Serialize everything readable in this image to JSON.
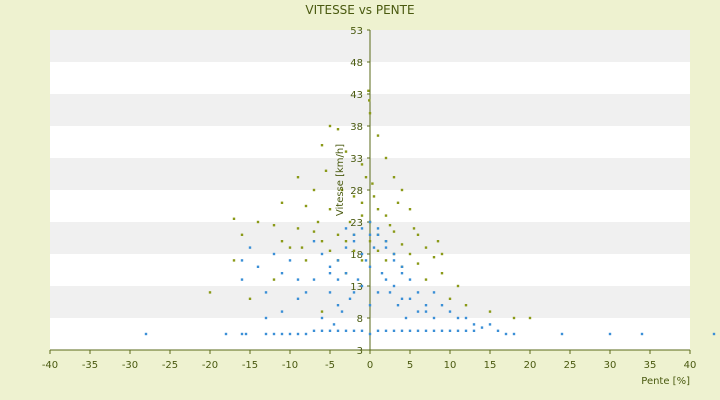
{
  "chart_data": {
    "type": "scatter",
    "title": "VITESSE vs PENTE",
    "xlabel": "Pente [%]",
    "ylabel": "Vitesse [km/h]",
    "xlim": [
      -40,
      40
    ],
    "ylim": [
      3,
      53
    ],
    "x_ticks": [
      -40,
      -35,
      -30,
      -25,
      -20,
      -15,
      -10,
      -5,
      0,
      5,
      10,
      15,
      20,
      25,
      30,
      35,
      40
    ],
    "y_ticks": [
      3,
      8,
      13,
      18,
      23,
      28,
      33,
      38,
      43,
      48,
      53
    ],
    "grid": "horizontal alternating bands",
    "legend": "none",
    "colors": {
      "background": "#eef2d0",
      "plot_band_light": "#ffffff",
      "plot_band_dark": "#f0f0f0",
      "axis": "#5a6a18",
      "series_blue": "#3a8fd6",
      "series_olive": "#8a9a18"
    },
    "series": [
      {
        "color": "#8a9a18",
        "points": [
          [
            -0.2,
            43.5
          ],
          [
            -0.1,
            42
          ],
          [
            0,
            40
          ],
          [
            -5,
            38
          ],
          [
            -4,
            37.5
          ],
          [
            1,
            36.5
          ],
          [
            -6,
            35
          ],
          [
            -3,
            34
          ],
          [
            2,
            33
          ],
          [
            -1,
            32
          ],
          [
            -5.5,
            31
          ],
          [
            3,
            30
          ],
          [
            -9,
            30
          ],
          [
            -7,
            28
          ],
          [
            4,
            28
          ],
          [
            0.5,
            27
          ],
          [
            -2,
            27
          ],
          [
            -11,
            26
          ],
          [
            -8,
            25.5
          ],
          [
            -5,
            25
          ],
          [
            5,
            25
          ],
          [
            -1,
            24
          ],
          [
            2,
            24
          ],
          [
            -17,
            23.5
          ],
          [
            -14,
            23
          ],
          [
            -12,
            22.5
          ],
          [
            -9,
            22
          ],
          [
            -7,
            21.5
          ],
          [
            -4,
            21
          ],
          [
            -2,
            21
          ],
          [
            1,
            21
          ],
          [
            3,
            21.5
          ],
          [
            6,
            21
          ],
          [
            -16,
            21
          ],
          [
            -6,
            20
          ],
          [
            -3,
            20
          ],
          [
            0,
            20
          ],
          [
            2,
            20
          ],
          [
            4,
            19.5
          ],
          [
            7,
            19
          ],
          [
            -10,
            19
          ],
          [
            -5,
            18.5
          ],
          [
            -2,
            18.5
          ],
          [
            1,
            18.5
          ],
          [
            3,
            18
          ],
          [
            5,
            18
          ],
          [
            8,
            17.5
          ],
          [
            -17,
            17
          ],
          [
            -8,
            17
          ],
          [
            -4,
            17
          ],
          [
            -1,
            17
          ],
          [
            2,
            17
          ],
          [
            6,
            16.5
          ],
          [
            9,
            15
          ],
          [
            11,
            13
          ],
          [
            -20,
            12
          ],
          [
            -15,
            11
          ],
          [
            -12,
            14
          ],
          [
            12,
            10
          ],
          [
            15,
            9
          ],
          [
            18,
            8
          ],
          [
            20,
            8
          ],
          [
            -6,
            9
          ],
          [
            7,
            14
          ],
          [
            10,
            11
          ],
          [
            -3,
            15
          ],
          [
            4,
            16
          ],
          [
            0,
            23
          ],
          [
            1,
            25
          ],
          [
            -1,
            26
          ],
          [
            0.3,
            29
          ],
          [
            -0.5,
            30
          ],
          [
            2.5,
            22.5
          ],
          [
            -2.5,
            23
          ],
          [
            5.5,
            22
          ],
          [
            -6.5,
            23
          ],
          [
            3.5,
            26
          ],
          [
            -3.5,
            28
          ],
          [
            -8.5,
            19
          ],
          [
            -11,
            20
          ],
          [
            8.5,
            20
          ],
          [
            9,
            18
          ]
        ]
      },
      {
        "color": "#3a8fd6",
        "points": [
          [
            -28,
            5.5
          ],
          [
            -18,
            5.5
          ],
          [
            -16,
            5.5
          ],
          [
            -15.5,
            5.5
          ],
          [
            -13,
            5.5
          ],
          [
            -12,
            5.5
          ],
          [
            -11,
            5.5
          ],
          [
            -10,
            5.5
          ],
          [
            -9,
            5.5
          ],
          [
            -8,
            5.5
          ],
          [
            -7,
            6
          ],
          [
            -6,
            6
          ],
          [
            -5,
            6
          ],
          [
            -4,
            6
          ],
          [
            -3,
            6
          ],
          [
            -2,
            6
          ],
          [
            -1,
            6
          ],
          [
            0,
            5.5
          ],
          [
            1,
            6
          ],
          [
            2,
            6
          ],
          [
            3,
            6
          ],
          [
            4,
            6
          ],
          [
            5,
            6
          ],
          [
            6,
            6
          ],
          [
            7,
            6
          ],
          [
            8,
            6
          ],
          [
            9,
            6
          ],
          [
            10,
            6
          ],
          [
            11,
            6
          ],
          [
            12,
            6
          ],
          [
            13,
            6
          ],
          [
            14,
            6.5
          ],
          [
            15,
            7
          ],
          [
            16,
            6
          ],
          [
            17,
            5.5
          ],
          [
            18,
            5.5
          ],
          [
            24,
            5.5
          ],
          [
            30,
            5.5
          ],
          [
            34,
            5.5
          ],
          [
            43,
            5.5
          ],
          [
            -16,
            14
          ],
          [
            -16,
            17
          ],
          [
            -15,
            19
          ],
          [
            -14,
            16
          ],
          [
            -13,
            12
          ],
          [
            -12,
            18
          ],
          [
            -11,
            15
          ],
          [
            -10,
            17
          ],
          [
            -9,
            14
          ],
          [
            -8,
            12
          ],
          [
            -7,
            20
          ],
          [
            -6,
            18
          ],
          [
            -5,
            16
          ],
          [
            -4,
            14
          ],
          [
            -3,
            22
          ],
          [
            -2,
            20
          ],
          [
            -1,
            18
          ],
          [
            0,
            16
          ],
          [
            1,
            22
          ],
          [
            2,
            20
          ],
          [
            3,
            18
          ],
          [
            4,
            16
          ],
          [
            5,
            14
          ],
          [
            6,
            12
          ],
          [
            7,
            10
          ],
          [
            8,
            12
          ],
          [
            9,
            10
          ],
          [
            10,
            9
          ],
          [
            11,
            8
          ],
          [
            12,
            8
          ],
          [
            13,
            7
          ],
          [
            -6,
            8
          ],
          [
            -4,
            10
          ],
          [
            -2,
            12
          ],
          [
            0,
            10
          ],
          [
            2,
            14
          ],
          [
            4,
            11
          ],
          [
            6,
            9
          ],
          [
            8,
            8
          ],
          [
            -3,
            15
          ],
          [
            -1,
            13
          ],
          [
            1,
            12
          ],
          [
            3,
            13
          ],
          [
            5,
            11
          ],
          [
            7,
            9
          ],
          [
            -5,
            12
          ],
          [
            -7,
            14
          ],
          [
            -9,
            11
          ],
          [
            -11,
            9
          ],
          [
            -13,
            8
          ],
          [
            0,
            21
          ],
          [
            0.5,
            19
          ],
          [
            -0.5,
            17
          ],
          [
            1.5,
            15
          ],
          [
            -1.5,
            14
          ],
          [
            2.5,
            12
          ],
          [
            -2.5,
            11
          ],
          [
            3.5,
            10
          ],
          [
            -3.5,
            9
          ],
          [
            4.5,
            8
          ],
          [
            -4.5,
            7
          ],
          [
            0,
            23
          ],
          [
            -1,
            22
          ],
          [
            1,
            21
          ],
          [
            -2,
            21
          ],
          [
            2,
            19
          ],
          [
            -3,
            19
          ],
          [
            3,
            17
          ],
          [
            -4,
            17
          ],
          [
            4,
            15
          ],
          [
            -5,
            15
          ]
        ]
      }
    ]
  }
}
